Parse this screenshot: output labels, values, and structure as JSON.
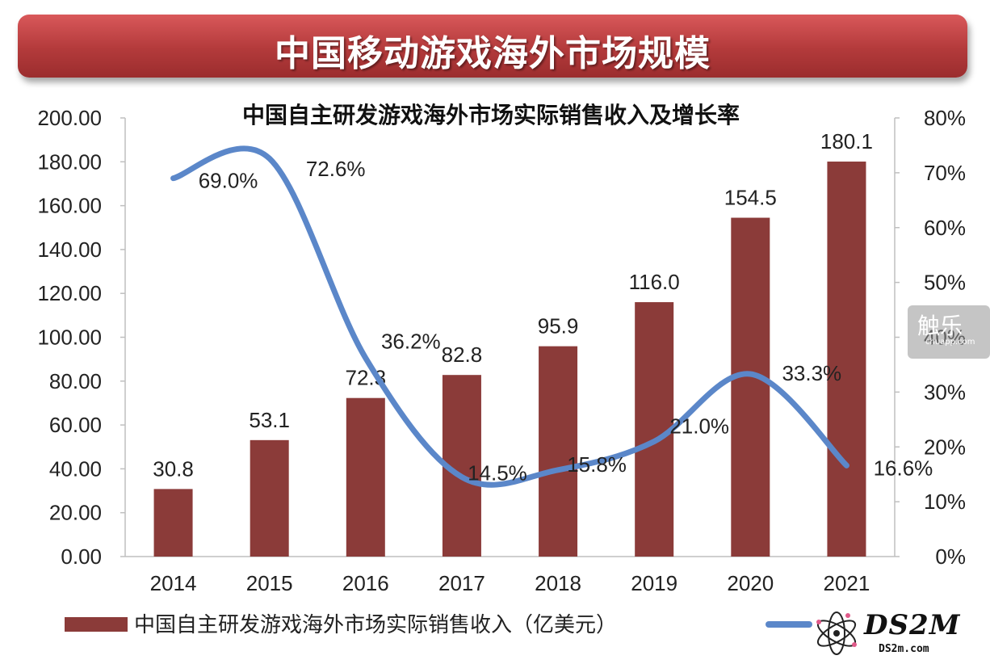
{
  "header": {
    "title": "中国移动游戏海外市场规模"
  },
  "chart_data": {
    "type": "bar",
    "title": "中国自主研发游戏海外市场实际销售收入及增长率",
    "categories": [
      "2014",
      "2015",
      "2016",
      "2017",
      "2018",
      "2019",
      "2020",
      "2021"
    ],
    "series": [
      {
        "name": "中国自主研发游戏海外市场实际销售收入（亿美元）",
        "type": "bar",
        "axis": "left",
        "color": "#8b3b39",
        "values": [
          30.8,
          53.1,
          72.3,
          82.8,
          95.9,
          116.0,
          154.5,
          180.1
        ],
        "labels": [
          "30.8",
          "53.1",
          "72.3",
          "82.8",
          "95.9",
          "116.0",
          "154.5",
          "180.1"
        ]
      },
      {
        "name": "",
        "type": "line",
        "axis": "right",
        "color": "#5b87c9",
        "values": [
          69.0,
          72.6,
          36.2,
          14.5,
          15.8,
          21.0,
          33.3,
          16.6
        ],
        "labels": [
          "69.0%",
          "72.6%",
          "36.2%",
          "14.5%",
          "15.8%",
          "21.0%",
          "33.3%",
          "16.6%"
        ]
      }
    ],
    "y_left": {
      "min": 0,
      "max": 200,
      "ticks": [
        "0.00",
        "20.00",
        "40.00",
        "60.00",
        "80.00",
        "100.00",
        "120.00",
        "140.00",
        "160.00",
        "180.00",
        "200.00"
      ]
    },
    "y_right": {
      "min": 0,
      "max": 80,
      "ticks": [
        "0%",
        "10%",
        "20%",
        "30%",
        "40%",
        "50%",
        "60%",
        "70%",
        "80%"
      ]
    },
    "grid": false,
    "legend": "bottom"
  },
  "watermarks": {
    "chuapp": "触乐",
    "chuapp_sub": "chuapp.com",
    "logo": "DS2M",
    "logo_sub": "DS2m.com"
  }
}
